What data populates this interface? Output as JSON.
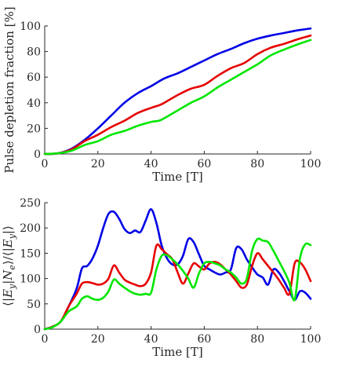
{
  "chart_data": [
    {
      "type": "line",
      "title": "",
      "xlabel": "Time [T]",
      "ylabel": "Pulse depletion fraction [%]",
      "xlim": [
        0,
        100
      ],
      "ylim": [
        0,
        100
      ],
      "xticks": [
        0,
        20,
        40,
        60,
        80,
        100
      ],
      "yticks": [
        0,
        20,
        40,
        60,
        80,
        100
      ],
      "grid": false,
      "series": [
        {
          "color": "#0000e6",
          "x": [
            0,
            5,
            10,
            15,
            20,
            25,
            30,
            35,
            40,
            45,
            50,
            55,
            60,
            65,
            70,
            75,
            80,
            85,
            90,
            95,
            100
          ],
          "y": [
            0,
            0.5,
            4,
            11,
            20,
            30,
            40,
            47.5,
            53,
            59,
            63,
            68,
            73,
            78,
            82,
            86.5,
            90,
            92.5,
            94.5,
            96.5,
            98
          ]
        },
        {
          "color": "#e60000",
          "x": [
            0,
            5,
            10,
            15,
            20,
            25,
            30,
            35,
            40,
            43,
            45,
            50,
            55,
            60,
            65,
            70,
            75,
            80,
            85,
            90,
            95,
            100
          ],
          "y": [
            0,
            0.5,
            3.5,
            10,
            15,
            21,
            26,
            32,
            36,
            38,
            40,
            46,
            51,
            54,
            61,
            67,
            71,
            78,
            83,
            86,
            89.5,
            92.5
          ]
        },
        {
          "color": "#00e600",
          "x": [
            0,
            5,
            10,
            15,
            20,
            25,
            30,
            35,
            40,
            43,
            45,
            50,
            55,
            60,
            65,
            70,
            75,
            80,
            85,
            90,
            95,
            100
          ],
          "y": [
            0,
            0.5,
            2.5,
            7,
            10,
            15,
            18,
            22,
            25,
            26,
            28,
            34,
            40,
            45,
            52,
            58,
            64,
            70,
            77,
            81.5,
            85.5,
            89
          ]
        }
      ]
    },
    {
      "type": "line",
      "title": "",
      "xlabel": "Time [T]",
      "ylabel": "⟨|E_y|N_e⟩/⟨|E_y|⟩",
      "xlim": [
        0,
        100
      ],
      "ylim": [
        0,
        250
      ],
      "xticks": [
        0,
        20,
        40,
        60,
        80,
        100
      ],
      "yticks": [
        0,
        50,
        100,
        150,
        200,
        250
      ],
      "grid": false,
      "series": [
        {
          "color": "#0000e6",
          "x": [
            0,
            3,
            6,
            9,
            12,
            14,
            16,
            18,
            20,
            22,
            24,
            26,
            28,
            30,
            32,
            34,
            36,
            38,
            40,
            42,
            44,
            46,
            48,
            50,
            52,
            54,
            56,
            58,
            60,
            62,
            64,
            66,
            68,
            70,
            72,
            74,
            76,
            78,
            80,
            82,
            84,
            86,
            88,
            90,
            92,
            94,
            96,
            98,
            100
          ],
          "y": [
            0,
            5,
            15,
            45,
            80,
            120,
            125,
            140,
            165,
            200,
            228,
            232,
            218,
            198,
            190,
            195,
            192,
            215,
            237,
            210,
            165,
            140,
            128,
            128,
            145,
            178,
            172,
            148,
            125,
            118,
            112,
            108,
            112,
            118,
            160,
            158,
            138,
            122,
            108,
            102,
            88,
            118,
            112,
            95,
            75,
            58,
            75,
            72,
            60
          ]
        },
        {
          "color": "#e60000",
          "x": [
            0,
            3,
            6,
            9,
            12,
            14,
            16,
            18,
            20,
            22,
            24,
            26,
            28,
            30,
            32,
            34,
            36,
            38,
            40,
            42,
            44,
            46,
            48,
            50,
            52,
            54,
            56,
            58,
            60,
            62,
            64,
            66,
            68,
            70,
            72,
            74,
            76,
            78,
            80,
            82,
            84,
            86,
            88,
            90,
            92,
            94,
            96,
            98,
            100
          ],
          "y": [
            0,
            5,
            15,
            45,
            70,
            90,
            93,
            91,
            88,
            90,
            100,
            126,
            112,
            98,
            92,
            88,
            85,
            90,
            112,
            165,
            158,
            148,
            138,
            112,
            90,
            110,
            130,
            124,
            118,
            130,
            133,
            128,
            118,
            108,
            95,
            82,
            88,
            125,
            150,
            138,
            125,
            112,
            98,
            82,
            70,
            130,
            132,
            118,
            95
          ]
        },
        {
          "color": "#00e600",
          "x": [
            0,
            3,
            6,
            9,
            12,
            14,
            16,
            18,
            20,
            22,
            24,
            26,
            28,
            30,
            32,
            34,
            36,
            38,
            40,
            42,
            44,
            46,
            48,
            50,
            52,
            54,
            56,
            58,
            60,
            62,
            64,
            66,
            68,
            70,
            72,
            74,
            76,
            78,
            80,
            82,
            84,
            86,
            88,
            90,
            92,
            94,
            96,
            98,
            100
          ],
          "y": [
            0,
            4,
            15,
            35,
            45,
            60,
            65,
            60,
            58,
            62,
            75,
            98,
            90,
            82,
            75,
            70,
            68,
            70,
            72,
            118,
            145,
            146,
            138,
            128,
            115,
            100,
            82,
            110,
            130,
            133,
            130,
            126,
            118,
            112,
            102,
            90,
            100,
            155,
            178,
            175,
            172,
            155,
            135,
            115,
            92,
            58,
            140,
            168,
            166
          ]
        }
      ]
    }
  ]
}
